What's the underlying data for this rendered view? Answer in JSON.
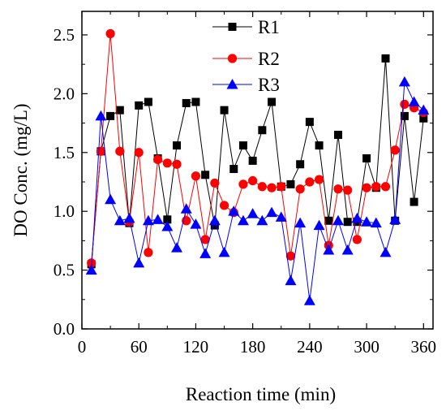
{
  "chart_data": {
    "type": "line",
    "title": "",
    "xlabel": "Reaction time (min)",
    "ylabel": "DO Conc. (mg/L)",
    "xlim": [
      0,
      370
    ],
    "ylim": [
      0,
      2.7
    ],
    "xticks": [
      0,
      60,
      120,
      180,
      240,
      300,
      360
    ],
    "xtick_labels": [
      "0",
      "60",
      "120",
      "180",
      "240",
      "300",
      "360"
    ],
    "yticks": [
      0.0,
      0.5,
      1.0,
      1.5,
      2.0,
      2.5
    ],
    "ytick_labels": [
      "0.0",
      "0.5",
      "1.0",
      "1.5",
      "2.0",
      "2.5"
    ],
    "grid": false,
    "legend_position": "top-center",
    "series": [
      {
        "name": "R1",
        "color": "#000000",
        "marker": "square",
        "x": [
          10,
          20,
          30,
          40,
          50,
          60,
          70,
          80,
          90,
          100,
          110,
          120,
          130,
          140,
          150,
          160,
          170,
          180,
          190,
          200,
          210,
          220,
          230,
          240,
          250,
          260,
          270,
          280,
          290,
          300,
          310,
          320,
          330,
          340,
          350,
          360
        ],
        "y": [
          0.55,
          1.51,
          1.81,
          1.86,
          0.9,
          1.9,
          1.93,
          1.45,
          0.93,
          1.56,
          1.92,
          1.93,
          1.31,
          0.88,
          1.86,
          1.36,
          1.56,
          1.43,
          1.69,
          1.93,
          1.21,
          1.23,
          1.4,
          1.76,
          1.56,
          0.92,
          1.65,
          0.91,
          0.91,
          1.45,
          1.2,
          2.3,
          0.92,
          1.81,
          1.08,
          1.79
        ]
      },
      {
        "name": "R2",
        "color": "#ff0000",
        "marker": "circle",
        "x": [
          10,
          20,
          30,
          40,
          50,
          60,
          70,
          80,
          90,
          100,
          110,
          120,
          130,
          140,
          150,
          160,
          170,
          180,
          190,
          200,
          210,
          220,
          230,
          240,
          250,
          260,
          270,
          280,
          290,
          300,
          310,
          320,
          330,
          340,
          350,
          360
        ],
        "y": [
          0.56,
          1.51,
          2.51,
          1.51,
          0.91,
          1.5,
          0.65,
          1.44,
          1.41,
          1.4,
          0.92,
          1.3,
          0.76,
          1.24,
          1.05,
          0.99,
          1.23,
          1.26,
          1.21,
          1.2,
          1.21,
          0.62,
          1.19,
          1.25,
          1.27,
          0.71,
          1.19,
          1.18,
          0.76,
          1.2,
          1.21,
          1.21,
          1.52,
          1.91,
          1.88,
          1.84
        ]
      },
      {
        "name": "R3",
        "color": "#0000ff",
        "marker": "triangle",
        "x": [
          10,
          20,
          30,
          40,
          50,
          60,
          70,
          80,
          90,
          100,
          110,
          120,
          130,
          140,
          150,
          160,
          170,
          180,
          190,
          200,
          210,
          220,
          230,
          240,
          250,
          260,
          270,
          280,
          290,
          300,
          310,
          320,
          330,
          340,
          350,
          360
        ],
        "y": [
          0.5,
          1.81,
          1.1,
          0.92,
          0.94,
          0.56,
          0.92,
          0.93,
          0.87,
          0.69,
          1.02,
          0.89,
          0.64,
          0.92,
          0.65,
          1.0,
          0.92,
          0.98,
          0.92,
          0.99,
          0.95,
          0.41,
          0.9,
          0.24,
          0.88,
          0.67,
          0.92,
          0.67,
          0.94,
          0.91,
          0.9,
          0.65,
          0.93,
          2.1,
          1.93,
          1.86
        ]
      }
    ]
  }
}
